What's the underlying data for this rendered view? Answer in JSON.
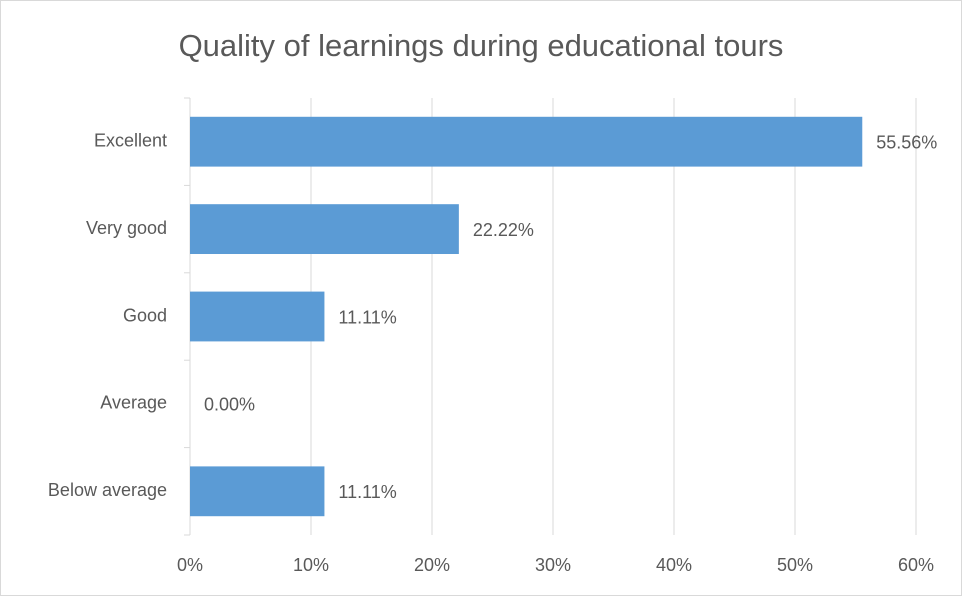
{
  "chart_data": {
    "type": "bar",
    "orientation": "horizontal",
    "title": "Quality of learnings during educational tours",
    "categories": [
      "Excellent",
      "Very good",
      "Good",
      "Average",
      "Below average"
    ],
    "values": [
      55.56,
      22.22,
      11.11,
      0,
      11.11
    ],
    "value_labels": [
      "55.56%",
      "22.22%",
      "11.11%",
      "0.00%",
      "11.11%"
    ],
    "color": "#5b9bd5",
    "xlim": [
      0,
      60
    ],
    "xticks": [
      {
        "value": 0,
        "label": "0%"
      },
      {
        "value": 10,
        "label": "10%"
      },
      {
        "value": 20,
        "label": "20%"
      },
      {
        "value": 30,
        "label": "30%"
      },
      {
        "value": 40,
        "label": "40%"
      },
      {
        "value": 50,
        "label": "50%"
      },
      {
        "value": 60,
        "label": "60%"
      }
    ],
    "grid": true
  }
}
